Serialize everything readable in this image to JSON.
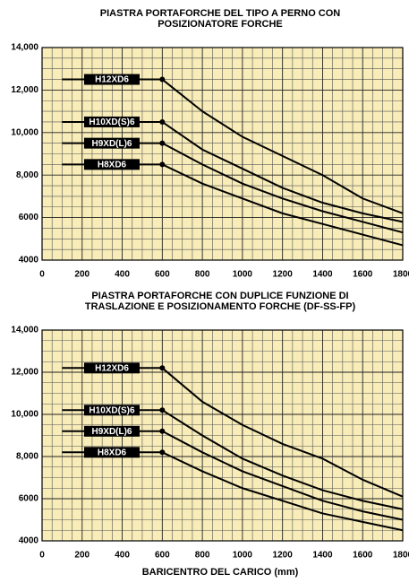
{
  "chart_data": [
    {
      "type": "line",
      "title": [
        "PIASTRA PORTAFORCHE DEL TIPO A PERNO CON",
        "POSIZIONATORE FORCHE"
      ],
      "x": [
        100,
        600,
        800,
        1000,
        1200,
        1400,
        1600,
        1800
      ],
      "series": [
        {
          "name": "H12XD6",
          "color": "#000000",
          "values": [
            12500,
            12500,
            11000,
            9800,
            8900,
            8000,
            6900,
            6200
          ]
        },
        {
          "name": "H10XD(S)6",
          "color": "#000000",
          "values": [
            10500,
            10500,
            9200,
            8300,
            7400,
            6700,
            6200,
            5800
          ]
        },
        {
          "name": "H9XD(L)6",
          "color": "#000000",
          "values": [
            9500,
            9500,
            8500,
            7600,
            6900,
            6300,
            5800,
            5300
          ]
        },
        {
          "name": "H8XD6",
          "color": "#000000",
          "values": [
            8500,
            8500,
            7600,
            6900,
            6200,
            5700,
            5200,
            4700
          ]
        }
      ],
      "xlim": [
        0,
        1800
      ],
      "xticks": [
        0,
        200,
        400,
        600,
        800,
        1000,
        1200,
        1400,
        1600,
        1800
      ],
      "ylim": [
        4000,
        14000
      ],
      "yticks": [
        4000,
        6000,
        {
          "value": 8000,
          "label": "8,000"
        },
        {
          "value": 10000,
          "label": "10,000"
        },
        {
          "value": 12000,
          "label": "12,000"
        },
        {
          "value": 14000,
          "label": "14,000"
        }
      ],
      "grid": true
    },
    {
      "type": "line",
      "title": [
        "PIASTRA PORTAFORCHE CON DUPLICE FUNZIONE DI",
        "TRASLAZIONE E POSIZIONAMENTO FORCHE (DF-SS-FP)"
      ],
      "x": [
        100,
        600,
        800,
        1000,
        1200,
        1400,
        1600,
        1800
      ],
      "series": [
        {
          "name": "H12XD6",
          "color": "#000000",
          "values": [
            12200,
            12200,
            10600,
            9500,
            8600,
            7900,
            6900,
            6100
          ]
        },
        {
          "name": "H10XD(S)6",
          "color": "#000000",
          "values": [
            10200,
            10200,
            9000,
            7900,
            7100,
            6400,
            5900,
            5500
          ]
        },
        {
          "name": "H9XD(L)6",
          "color": "#000000",
          "values": [
            9200,
            9200,
            8200,
            7300,
            6600,
            5900,
            5400,
            5000
          ]
        },
        {
          "name": "H8XD6",
          "color": "#000000",
          "values": [
            8200,
            8200,
            7300,
            6500,
            5900,
            5300,
            4900,
            4500
          ]
        }
      ],
      "xlim": [
        0,
        1800
      ],
      "xticks": [
        0,
        200,
        400,
        600,
        800,
        1000,
        1200,
        1400,
        1600,
        1800
      ],
      "ylim": [
        4000,
        14000
      ],
      "yticks": [
        4000,
        6000,
        {
          "value": 8000,
          "label": "8,000"
        },
        {
          "value": 10000,
          "label": "10,000"
        },
        {
          "value": 12000,
          "label": "12,000"
        },
        {
          "value": 14000,
          "label": "14,000"
        }
      ],
      "x_label": "BARICENTRO DEL CARICO (mm)",
      "grid": true
    }
  ]
}
